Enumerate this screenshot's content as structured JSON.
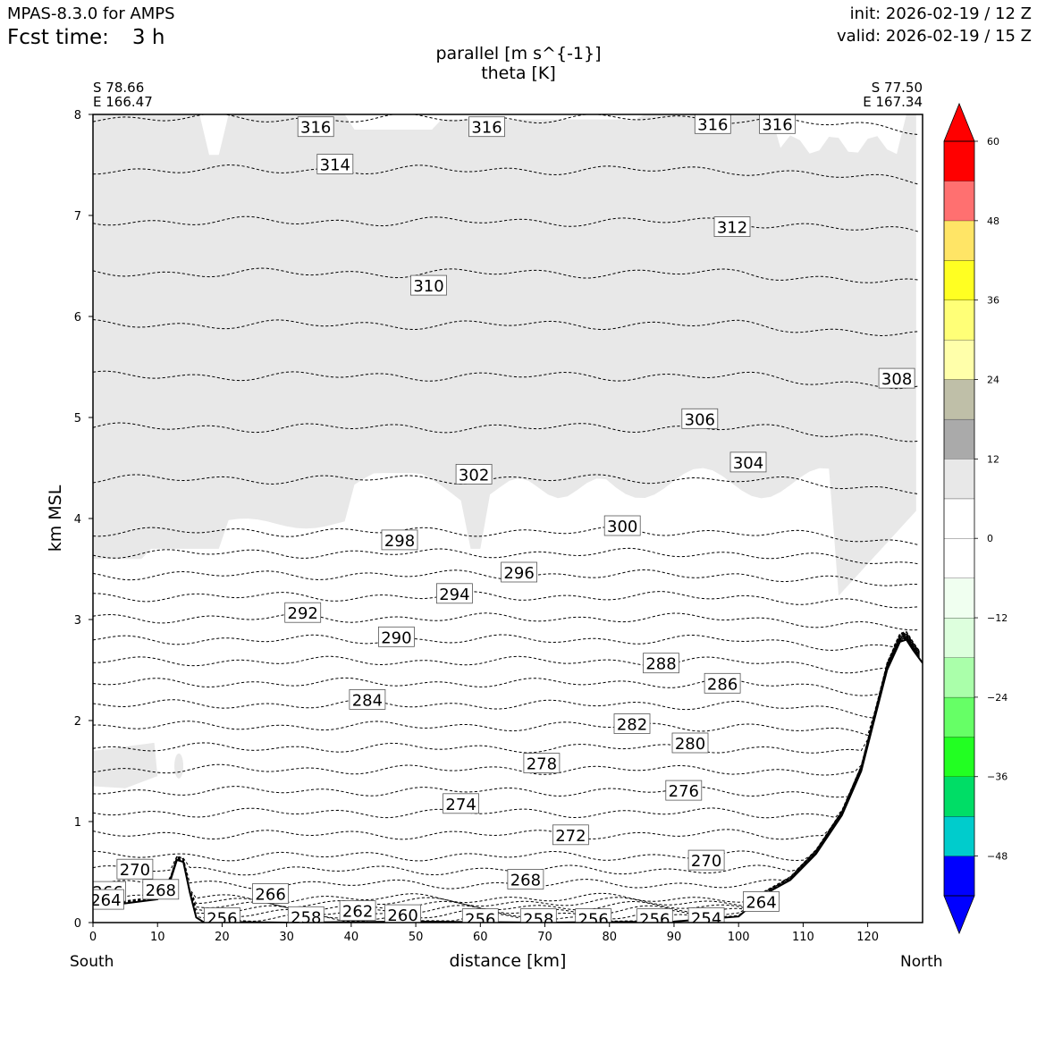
{
  "header": {
    "model": "MPAS-8.3.0 for AMPS",
    "fcst_label": "Fcst time:",
    "fcst_value": "3 h",
    "init": "init: 2026-02-19 / 12 Z",
    "valid": "valid: 2026-02-19 / 15 Z"
  },
  "chart_data": {
    "type": "contour",
    "title": [
      "parallel [m s^{-1}]",
      "theta [K]"
    ],
    "xlabel": "distance [km]",
    "ylabel": "km MSL",
    "xlim": [
      0,
      128.5
    ],
    "ylim": [
      0,
      8
    ],
    "xticks": [
      0,
      10,
      20,
      30,
      40,
      50,
      60,
      70,
      80,
      90,
      100,
      110,
      120
    ],
    "yticks": [
      0,
      1,
      2,
      3,
      4,
      5,
      6,
      7,
      8
    ],
    "left_end": {
      "lat": "S 78.66",
      "lon": "E 166.47",
      "label": "South"
    },
    "right_end": {
      "lat": "S 77.50",
      "lon": "E 167.34",
      "label": "North"
    },
    "colorbar": {
      "levels": [
        -54,
        -48,
        -42,
        -36,
        -30,
        -24,
        -18,
        -12,
        -6,
        0,
        6,
        12,
        18,
        24,
        30,
        36,
        42,
        48,
        54,
        60
      ],
      "colors": [
        "#0000ff",
        "#00cccc",
        "#00dd66",
        "#22ff22",
        "#66ff66",
        "#aaffaa",
        "#ddffdd",
        "#f0fff0",
        "#ffffff",
        "#ffffff",
        "#e8e8e8",
        "#aaaaaa",
        "#bfbfa8",
        "#ffffaa",
        "#ffff77",
        "#ffff22",
        "#ffe566",
        "#ff7070",
        "#ff0000"
      ],
      "under_color": "#0000ff",
      "over_color": "#ff0000",
      "tick_labels": [
        "60",
        "48",
        "36",
        "24",
        "12",
        "0",
        "−12",
        "−24",
        "−36",
        "−48"
      ],
      "tick_values": [
        60,
        48,
        36,
        24,
        12,
        0,
        -12,
        -24,
        -36,
        -48
      ]
    },
    "terrain": [
      [
        0,
        0.16
      ],
      [
        5,
        0.19
      ],
      [
        10,
        0.23
      ],
      [
        12,
        0.42
      ],
      [
        13,
        0.62
      ],
      [
        14,
        0.6
      ],
      [
        15,
        0.3
      ],
      [
        16,
        0.05
      ],
      [
        17,
        0.01
      ],
      [
        30,
        0.0
      ],
      [
        50,
        0.01
      ],
      [
        70,
        0.0
      ],
      [
        90,
        0.01
      ],
      [
        100,
        0.06
      ],
      [
        104,
        0.28
      ],
      [
        108,
        0.42
      ],
      [
        112,
        0.68
      ],
      [
        116,
        1.06
      ],
      [
        119,
        1.5
      ],
      [
        121,
        2.0
      ],
      [
        123,
        2.5
      ],
      [
        125,
        2.78
      ],
      [
        126,
        2.8
      ],
      [
        127,
        2.7
      ],
      [
        128.5,
        2.57
      ]
    ],
    "contour_labels": [
      {
        "text": "316",
        "x": 34.5,
        "y": 7.87
      },
      {
        "text": "316",
        "x": 61,
        "y": 7.87
      },
      {
        "text": "316",
        "x": 96,
        "y": 7.9
      },
      {
        "text": "316",
        "x": 106,
        "y": 7.9
      },
      {
        "text": "314",
        "x": 37.5,
        "y": 7.5
      },
      {
        "text": "312",
        "x": 99,
        "y": 6.88
      },
      {
        "text": "310",
        "x": 52,
        "y": 6.3
      },
      {
        "text": "308",
        "x": 124.5,
        "y": 5.38
      },
      {
        "text": "306",
        "x": 94,
        "y": 4.98
      },
      {
        "text": "304",
        "x": 101.5,
        "y": 4.55
      },
      {
        "text": "302",
        "x": 59,
        "y": 4.43
      },
      {
        "text": "300",
        "x": 82,
        "y": 3.92
      },
      {
        "text": "298",
        "x": 47.5,
        "y": 3.78
      },
      {
        "text": "296",
        "x": 66,
        "y": 3.46
      },
      {
        "text": "294",
        "x": 56,
        "y": 3.25
      },
      {
        "text": "292",
        "x": 32.5,
        "y": 3.06
      },
      {
        "text": "290",
        "x": 47,
        "y": 2.82
      },
      {
        "text": "288",
        "x": 88,
        "y": 2.56
      },
      {
        "text": "286",
        "x": 97.5,
        "y": 2.36
      },
      {
        "text": "284",
        "x": 42.5,
        "y": 2.2
      },
      {
        "text": "282",
        "x": 83.5,
        "y": 1.96
      },
      {
        "text": "280",
        "x": 92.5,
        "y": 1.77
      },
      {
        "text": "278",
        "x": 69.5,
        "y": 1.57
      },
      {
        "text": "276",
        "x": 91.5,
        "y": 1.3
      },
      {
        "text": "274",
        "x": 57,
        "y": 1.17
      },
      {
        "text": "272",
        "x": 74,
        "y": 0.86
      },
      {
        "text": "270",
        "x": 95,
        "y": 0.61
      },
      {
        "text": "270",
        "x": 6.5,
        "y": 0.52
      },
      {
        "text": "268",
        "x": 67,
        "y": 0.42
      },
      {
        "text": "268",
        "x": 10.5,
        "y": 0.32
      },
      {
        "text": "266",
        "x": 27.5,
        "y": 0.28
      },
      {
        "text": "266",
        "x": 2.3,
        "y": 0.3
      },
      {
        "text": "264",
        "x": 103.5,
        "y": 0.2
      },
      {
        "text": "264",
        "x": 2,
        "y": 0.22
      },
      {
        "text": "262",
        "x": 41,
        "y": 0.11
      },
      {
        "text": "260",
        "x": 48,
        "y": 0.07
      },
      {
        "text": "258",
        "x": 33,
        "y": 0.05
      },
      {
        "text": "258",
        "x": 69,
        "y": 0.03
      },
      {
        "text": "256",
        "x": 20,
        "y": 0.04
      },
      {
        "text": "256",
        "x": 60,
        "y": 0.03
      },
      {
        "text": "256",
        "x": 77.5,
        "y": 0.03
      },
      {
        "text": "256",
        "x": 87,
        "y": 0.03
      },
      {
        "text": "254",
        "x": 95,
        "y": 0.04
      }
    ],
    "theta_levels": [
      254,
      256,
      258,
      260,
      262,
      264,
      266,
      268,
      270,
      272,
      274,
      276,
      278,
      280,
      282,
      284,
      286,
      288,
      290,
      292,
      294,
      296,
      298,
      300,
      302,
      304,
      306,
      308,
      310,
      312,
      314,
      316
    ]
  }
}
